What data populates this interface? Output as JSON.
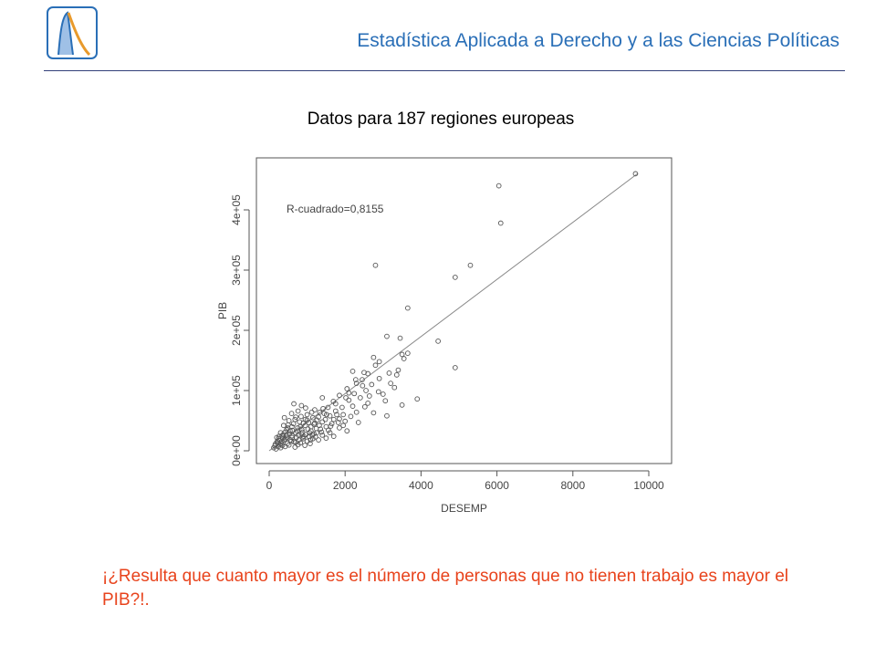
{
  "header": {
    "title": "Estadística Aplicada a Derecho y a las Ciencias Políticas",
    "accent_color": "#2a6fb7",
    "logo_icon": "curve-logo-icon"
  },
  "slide": {
    "subtitle": "Datos para 187 regiones europeas",
    "question": "¡¿Resulta que cuanto mayor es el número de personas que no tienen trabajo es mayor el PIB?!."
  },
  "chart_data": {
    "type": "scatter",
    "xlabel": "DESEMP",
    "ylabel": "PIB",
    "xlim": [
      0,
      10000
    ],
    "ylim": [
      0,
      460000
    ],
    "x_ticks": [
      0,
      2000,
      4000,
      6000,
      8000,
      10000
    ],
    "x_tick_labels": [
      "0",
      "2000",
      "4000",
      "6000",
      "8000",
      "10000"
    ],
    "y_ticks": [
      0,
      100000,
      200000,
      300000,
      400000
    ],
    "y_tick_labels": [
      "0e+00",
      "1e+05",
      "2e+05",
      "3e+05",
      "4e+05"
    ],
    "annotation": "R-cuadrado=0,8155",
    "grid": false,
    "point_color": "#555555",
    "fit_line": {
      "x": [
        0,
        9700
      ],
      "y": [
        0,
        460000
      ],
      "color": "#888888"
    },
    "points": [
      [
        9650,
        460000
      ],
      [
        6050,
        440000
      ],
      [
        6100,
        378000
      ],
      [
        2800,
        308000
      ],
      [
        5300,
        308000
      ],
      [
        4900,
        288000
      ],
      [
        3650,
        237000
      ],
      [
        3100,
        190000
      ],
      [
        3450,
        187000
      ],
      [
        4450,
        182000
      ],
      [
        3500,
        160000
      ],
      [
        3650,
        162000
      ],
      [
        3550,
        153000
      ],
      [
        2750,
        155000
      ],
      [
        2900,
        148000
      ],
      [
        2500,
        130000
      ],
      [
        2800,
        142000
      ],
      [
        2600,
        128000
      ],
      [
        2200,
        132000
      ],
      [
        4900,
        138000
      ],
      [
        2900,
        120000
      ],
      [
        2450,
        118000
      ],
      [
        2300,
        112000
      ],
      [
        2050,
        103000
      ],
      [
        2700,
        110000
      ],
      [
        3200,
        112000
      ],
      [
        2100,
        96000
      ],
      [
        1850,
        92000
      ],
      [
        2550,
        100000
      ],
      [
        3900,
        86000
      ],
      [
        3000,
        94000
      ],
      [
        1400,
        88000
      ],
      [
        1750,
        78000
      ],
      [
        2400,
        88000
      ],
      [
        3500,
        76000
      ],
      [
        2750,
        63000
      ],
      [
        3100,
        58000
      ],
      [
        2200,
        74000
      ],
      [
        1550,
        72000
      ],
      [
        1200,
        68000
      ],
      [
        1450,
        62000
      ],
      [
        850,
        75000
      ],
      [
        650,
        78000
      ],
      [
        1300,
        56000
      ],
      [
        1000,
        60000
      ],
      [
        1850,
        53000
      ],
      [
        1950,
        42000
      ],
      [
        2050,
        33000
      ],
      [
        2000,
        49000
      ],
      [
        1650,
        45000
      ],
      [
        1500,
        40000
      ],
      [
        1350,
        36000
      ],
      [
        1200,
        46000
      ],
      [
        950,
        52000
      ],
      [
        800,
        48000
      ],
      [
        700,
        56000
      ],
      [
        400,
        55000
      ],
      [
        600,
        40000
      ],
      [
        500,
        43000
      ],
      [
        1100,
        33000
      ],
      [
        1400,
        26000
      ],
      [
        1700,
        24000
      ],
      [
        1050,
        24000
      ],
      [
        850,
        28000
      ],
      [
        700,
        30000
      ],
      [
        600,
        22000
      ],
      [
        550,
        33000
      ],
      [
        450,
        26000
      ],
      [
        300,
        30000
      ],
      [
        400,
        18000
      ],
      [
        350,
        22000
      ],
      [
        250,
        20000
      ],
      [
        200,
        14000
      ],
      [
        280,
        10000
      ],
      [
        150,
        8000
      ],
      [
        120,
        5000
      ],
      [
        220,
        16000
      ],
      [
        480,
        12000
      ],
      [
        650,
        15000
      ],
      [
        780,
        18000
      ],
      [
        900,
        20000
      ],
      [
        1000,
        16000
      ],
      [
        1150,
        20000
      ],
      [
        1300,
        18000
      ],
      [
        1600,
        30000
      ],
      [
        1500,
        21000
      ],
      [
        350,
        9000
      ],
      [
        520,
        9500
      ],
      [
        600,
        25000
      ],
      [
        750,
        38000
      ],
      [
        950,
        42000
      ],
      [
        1100,
        40000
      ],
      [
        1250,
        30000
      ],
      [
        300,
        5000
      ],
      [
        180,
        3000
      ],
      [
        420,
        7000
      ],
      [
        760,
        10000
      ],
      [
        880,
        31000
      ],
      [
        1020,
        36000
      ],
      [
        1150,
        55000
      ],
      [
        1600,
        58000
      ],
      [
        1750,
        66000
      ],
      [
        2100,
        84000
      ],
      [
        1950,
        60000
      ],
      [
        2300,
        64000
      ],
      [
        2600,
        79000
      ],
      [
        3300,
        105000
      ],
      [
        1700,
        52000
      ],
      [
        1850,
        38000
      ],
      [
        1400,
        48000
      ],
      [
        560,
        18000
      ],
      [
        680,
        6000
      ],
      [
        820,
        13000
      ],
      [
        260,
        24000
      ],
      [
        330,
        15000
      ],
      [
        200,
        22000
      ],
      [
        940,
        9000
      ],
      [
        1080,
        12000
      ],
      [
        1180,
        28000
      ],
      [
        1320,
        42000
      ],
      [
        460,
        35000
      ],
      [
        380,
        42000
      ],
      [
        720,
        22000
      ],
      [
        860,
        35000
      ],
      [
        1040,
        47000
      ],
      [
        1240,
        37000
      ],
      [
        1560,
        34000
      ],
      [
        1920,
        72000
      ],
      [
        2240,
        95000
      ],
      [
        2460,
        108000
      ],
      [
        2640,
        91000
      ],
      [
        2880,
        98000
      ],
      [
        3160,
        129000
      ],
      [
        3400,
        134000
      ],
      [
        640,
        45000
      ],
      [
        540,
        28000
      ],
      [
        430,
        20000
      ],
      [
        310,
        12000
      ],
      [
        240,
        7000
      ],
      [
        160,
        11000
      ],
      [
        770,
        26000
      ],
      [
        910,
        24000
      ],
      [
        1060,
        30000
      ],
      [
        1220,
        23000
      ],
      [
        1380,
        31000
      ],
      [
        1480,
        52000
      ],
      [
        1620,
        41000
      ],
      [
        1820,
        47000
      ],
      [
        2150,
        57000
      ],
      [
        2350,
        47000
      ],
      [
        590,
        62000
      ],
      [
        760,
        66000
      ],
      [
        960,
        71000
      ],
      [
        1120,
        64000
      ],
      [
        270,
        17000
      ],
      [
        370,
        27000
      ],
      [
        490,
        38000
      ],
      [
        610,
        34000
      ],
      [
        700,
        14000
      ],
      [
        820,
        40000
      ],
      [
        970,
        27000
      ],
      [
        1090,
        18000
      ],
      [
        1260,
        51000
      ],
      [
        1420,
        70000
      ],
      [
        1690,
        82000
      ],
      [
        2020,
        88000
      ],
      [
        2280,
        118000
      ],
      [
        3060,
        83000
      ],
      [
        3360,
        126000
      ],
      [
        2520,
        73000
      ],
      [
        420,
        31000
      ],
      [
        520,
        50000
      ],
      [
        680,
        52000
      ],
      [
        840,
        57000
      ],
      [
        900,
        46000
      ],
      [
        1000,
        51000
      ],
      [
        1180,
        44000
      ],
      [
        1330,
        64000
      ],
      [
        1510,
        60000
      ],
      [
        1780,
        60000
      ],
      [
        230,
        13000
      ],
      [
        340,
        25000
      ],
      [
        460,
        22000
      ],
      [
        580,
        16000
      ],
      [
        740,
        33000
      ],
      [
        880,
        22000
      ],
      [
        1130,
        26000
      ]
    ]
  }
}
